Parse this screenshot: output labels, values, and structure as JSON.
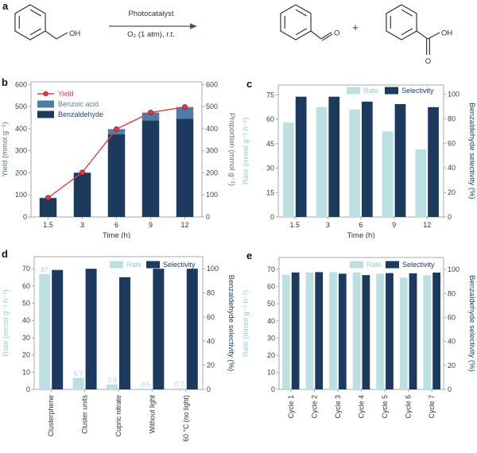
{
  "panel_labels": {
    "a": "a",
    "b": "b",
    "c": "c",
    "d": "d",
    "e": "e"
  },
  "colors": {
    "navy": "#1b3a5e",
    "steel_blue": "#4d7ea8",
    "light_teal": "#bcdfe2",
    "teal_label": "#93d0d7",
    "red": "#d7404a",
    "red_marker_stroke": "#9a232d",
    "axis_line": "#a6a9ad",
    "tick_text": "#3b4046",
    "text": "#2f3338",
    "slate_label": "#5e7183",
    "bond": "#34383c",
    "arrow": "#44566b"
  },
  "reaction": {
    "photocatalyst": "Photocatalyst",
    "conditions": "O₂ (1 atm), r.t.",
    "plus": "+",
    "benzyl_oh": "OH",
    "benzaldehyde_o": "O",
    "benzoic_o": "O",
    "benzoic_oh": "OH"
  },
  "chart_data": [
    {
      "id": "b",
      "type": "bar",
      "subtype": "stacked-bar-with-line",
      "categories": [
        "1.5",
        "3",
        "6",
        "9",
        "12"
      ],
      "xlabel": "Time (h)",
      "left_axis": {
        "label": "Yield (mmol g⁻¹)",
        "ticks": [
          0,
          100,
          200,
          300,
          400,
          500,
          600
        ],
        "max": 612,
        "label_color": "#5e7183"
      },
      "right_axis": {
        "label": "Proportion (mmol g⁻¹)",
        "ticks": [
          0,
          100,
          200,
          300,
          400,
          500,
          600
        ],
        "max": 612,
        "label_color": "#5e7183"
      },
      "series": [
        {
          "name": "Benzaldehyde",
          "axis": "left",
          "color": "#1b3a5e",
          "values": [
            85,
            199,
            375,
            437,
            445
          ]
        },
        {
          "name": "Benzoic acid",
          "axis": "left",
          "color": "#4d7ea8",
          "values": [
            2,
            3,
            23,
            36,
            53
          ]
        }
      ],
      "line": {
        "name": "Yield",
        "color": "#d7404a",
        "marker_stroke": "#9a232d",
        "values": [
          87,
          202,
          398,
          473,
          498
        ]
      },
      "legend": [
        {
          "label": "Yield",
          "type": "line",
          "color": "#d7404a",
          "text_color": "#d7404a"
        },
        {
          "label": "Benzoic acid",
          "type": "box",
          "color": "#4d7ea8",
          "text_color": "#5c7f9f"
        },
        {
          "label": "Benzaldehyde",
          "type": "box",
          "color": "#1b3a5e",
          "text_color": "#27476b"
        }
      ],
      "legend_layout": "vertical"
    },
    {
      "id": "c",
      "type": "bar",
      "subtype": "grouped-bar",
      "categories": [
        "1.5",
        "3",
        "6",
        "9",
        "12"
      ],
      "xlabel": "Time (h)",
      "left_axis": {
        "label": "Rate (mmol g⁻¹ h⁻¹)",
        "ticks": [
          0,
          15,
          30,
          45,
          60,
          75
        ],
        "max": 81,
        "label_color": "#93d0d7"
      },
      "right_axis": {
        "label": "Benzaldehyde selectivity (%)",
        "ticks": [
          0,
          20,
          40,
          60,
          80,
          100
        ],
        "max": 107.5,
        "label_color": "#1b3a5e"
      },
      "series": [
        {
          "name": "Rate",
          "axis": "left",
          "color": "#bcdfe2",
          "values": [
            58,
            67.5,
            66,
            52.5,
            41.5
          ]
        },
        {
          "name": "Selectivity",
          "axis": "right",
          "color": "#1b3a5e",
          "values": [
            98,
            98,
            94,
            92,
            89.5
          ]
        }
      ],
      "legend": [
        {
          "label": "Rate",
          "type": "box",
          "color": "#bcdfe2",
          "text_color": "#93d0d7"
        },
        {
          "label": "Selectivity",
          "type": "box",
          "color": "#1b3a5e",
          "text_color": "#1b3a5e"
        }
      ],
      "legend_layout": "horizontal"
    },
    {
      "id": "d",
      "type": "bar",
      "subtype": "grouped-bar",
      "categories": [
        "Clusterphene",
        "Cluster units",
        "Cupric nitrate",
        "Without light",
        "60 °C (no light)"
      ],
      "xlabel": "",
      "left_axis": {
        "label": "Rate (mmol g⁻¹ h⁻¹)",
        "ticks": [
          0,
          10,
          20,
          30,
          40,
          50,
          60,
          70
        ],
        "max": 77,
        "label_color": "#93d0d7"
      },
      "right_axis": {
        "label": "Benzaldehyde selectivity (%)",
        "ticks": [
          0,
          20,
          40,
          60,
          80,
          100
        ],
        "max": 110,
        "label_color": "#1b3a5e"
      },
      "series": [
        {
          "name": "Rate",
          "axis": "left",
          "color": "#bcdfe2",
          "values": [
            67,
            6.7,
            2.9,
            0.5,
            0.7
          ],
          "labels": [
            "67",
            "6.7",
            "2.9",
            "0.5",
            "0.7"
          ],
          "label_color": "#a5d8dd"
        },
        {
          "name": "Selectivity",
          "axis": "right",
          "color": "#1b3a5e",
          "values": [
            99,
            100,
            93,
            100,
            100
          ]
        }
      ],
      "legend": [
        {
          "label": "Rate",
          "type": "box",
          "color": "#bcdfe2",
          "text_color": "#93d0d7"
        },
        {
          "label": "Selectivity",
          "type": "box",
          "color": "#1b3a5e",
          "text_color": "#1b3a5e"
        }
      ],
      "legend_layout": "horizontal"
    },
    {
      "id": "e",
      "type": "bar",
      "subtype": "grouped-bar",
      "categories": [
        "Cycle 1",
        "Cycle 2",
        "Cycle 3",
        "Cycle 4",
        "Cycle 5",
        "Cycle 6",
        "Cycle 7"
      ],
      "xlabel": "",
      "left_axis": {
        "label": "Rate (mmol g⁻¹ h⁻¹)",
        "ticks": [
          0,
          10,
          20,
          30,
          40,
          50,
          60,
          70
        ],
        "max": 77,
        "label_color": "#93d0d7"
      },
      "right_axis": {
        "label": "Benzaldehyde selectivity (%)",
        "ticks": [
          0,
          20,
          40,
          60,
          80,
          100
        ],
        "max": 110,
        "label_color": "#1b3a5e"
      },
      "series": [
        {
          "name": "Rate",
          "axis": "left",
          "color": "#bcdfe2",
          "values": [
            66.9,
            68.2,
            68.5,
            68.3,
            67.6,
            65.3,
            66.6
          ]
        },
        {
          "name": "Selectivity",
          "axis": "right",
          "color": "#1b3a5e",
          "values": [
            97.5,
            97.8,
            96.5,
            95.3,
            97.0,
            96.8,
            97.4
          ]
        }
      ],
      "legend": [
        {
          "label": "Rate",
          "type": "box",
          "color": "#bcdfe2",
          "text_color": "#93d0d7"
        },
        {
          "label": "Selectivity",
          "type": "box",
          "color": "#1b3a5e",
          "text_color": "#1b3a5e"
        }
      ],
      "legend_layout": "horizontal"
    }
  ]
}
